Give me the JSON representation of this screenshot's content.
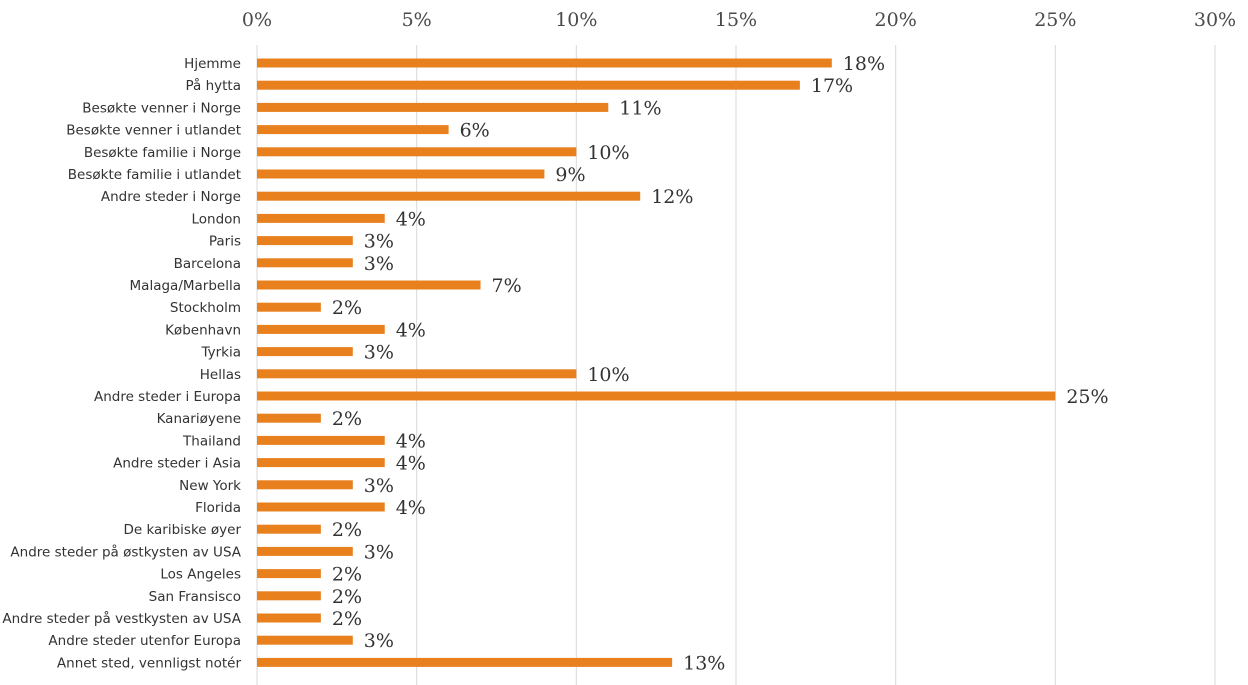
{
  "chart_data": {
    "type": "bar",
    "orientation": "horizontal",
    "categories": [
      "Hjemme",
      "På hytta",
      "Besøkte venner i Norge",
      "Besøkte venner i utlandet",
      "Besøkte familie i Norge",
      "Besøkte familie i utlandet",
      "Andre steder i Norge",
      "London",
      "Paris",
      "Barcelona",
      "Malaga/Marbella",
      "Stockholm",
      "København",
      "Tyrkia",
      "Hellas",
      "Andre steder i Europa",
      "Kanariøyene",
      "Thailand",
      "Andre steder i Asia",
      "New York",
      "Florida",
      "De karibiske øyer",
      "Andre steder på østkysten av USA",
      "Los Angeles",
      "San Fransisco",
      "Andre steder på vestkysten av USA",
      "Andre steder utenfor Europa",
      "Annet sted, vennligst notér"
    ],
    "values": [
      18,
      17,
      11,
      6,
      10,
      9,
      12,
      4,
      3,
      3,
      7,
      2,
      4,
      3,
      10,
      25,
      2,
      4,
      4,
      3,
      4,
      2,
      3,
      2,
      2,
      2,
      3,
      13
    ],
    "value_labels": [
      "18%",
      "17%",
      "11%",
      "6%",
      "10%",
      "9%",
      "12%",
      "4%",
      "3%",
      "3%",
      "7%",
      "2%",
      "4%",
      "3%",
      "10%",
      "25%",
      "2%",
      "4%",
      "4%",
      "3%",
      "4%",
      "2%",
      "3%",
      "2%",
      "2%",
      "2%",
      "3%",
      "13%"
    ],
    "xlim": [
      0,
      30
    ],
    "x_ticks": [
      0,
      5,
      10,
      15,
      20,
      25,
      30
    ],
    "x_tick_labels": [
      "0%",
      "5%",
      "10%",
      "15%",
      "20%",
      "25%",
      "30%"
    ],
    "x_axis_position": "top",
    "grid": true,
    "legend": "none",
    "title": "",
    "xlabel": "",
    "ylabel": "",
    "bar_color": "#E8801E"
  }
}
